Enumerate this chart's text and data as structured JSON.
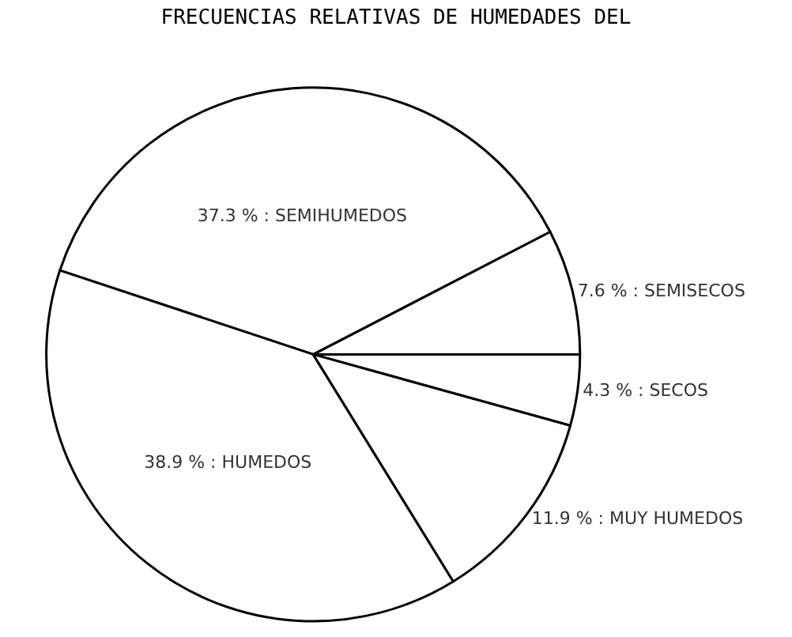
{
  "chart_data": {
    "type": "pie",
    "title": "FRECUENCIAS RELATIVAS DE HUMEDADES DEL",
    "categories": [
      "SECOS",
      "SEMISECOS",
      "SEMIHUMEDOS",
      "HUMEDOS",
      "MUY HUMEDOS"
    ],
    "values": [
      4.3,
      7.6,
      37.3,
      38.9,
      11.9
    ],
    "colors": [
      "#ffffff",
      "#ffffff",
      "#ffffff",
      "#ffffff",
      "#ffffff"
    ],
    "value_labels": [
      "4.3 %",
      "7.6 %",
      "37.3 %",
      "38.9 %",
      "11.9 %"
    ],
    "legend": false
  }
}
